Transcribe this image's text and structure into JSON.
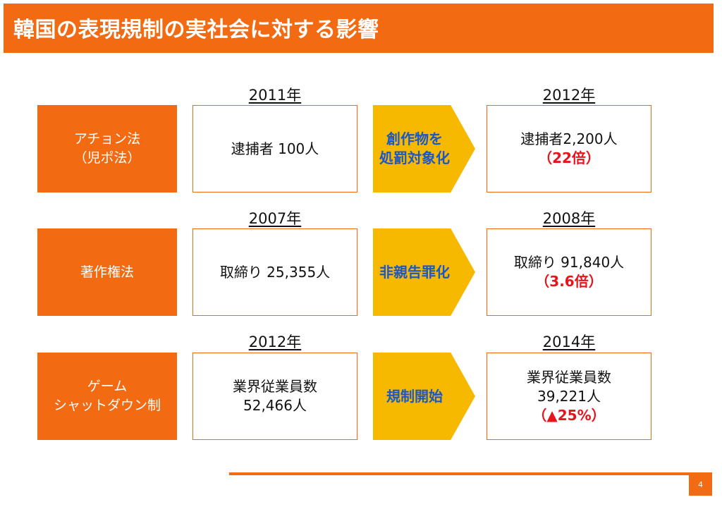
{
  "header": {
    "title": "韓国の表現規制の実社会に対する影響"
  },
  "rows": [
    {
      "label": [
        "アチョン法",
        "（児ポ法）"
      ],
      "year_before": "2011年",
      "before": [
        "逮捕者 100人"
      ],
      "action": [
        "創作物を",
        "処罰対象化"
      ],
      "year_after": "2012年",
      "after": [
        "逮捕者2,200人"
      ],
      "after_emph": "（22倍）"
    },
    {
      "label": [
        "著作権法"
      ],
      "year_before": "2007年",
      "before": [
        "取締り 25,355人"
      ],
      "action": [
        "非親告罪化"
      ],
      "year_after": "2008年",
      "after": [
        "取締り 91,840人"
      ],
      "after_emph": "（3.6倍）"
    },
    {
      "label": [
        "ゲーム",
        "シャットダウン制"
      ],
      "year_before": "2012年",
      "before": [
        "業界従業員数",
        "52,466人"
      ],
      "action": [
        "規制開始"
      ],
      "year_after": "2014年",
      "after": [
        "業界従業員数",
        "39,221人"
      ],
      "after_emph": "（▲25%）"
    }
  ],
  "footer": {
    "page_number": "4"
  },
  "colors": {
    "accent": "#f26a12",
    "arrow": "#f7b900",
    "arrow_text": "#1a57c9",
    "emphasis": "#e8141c"
  }
}
